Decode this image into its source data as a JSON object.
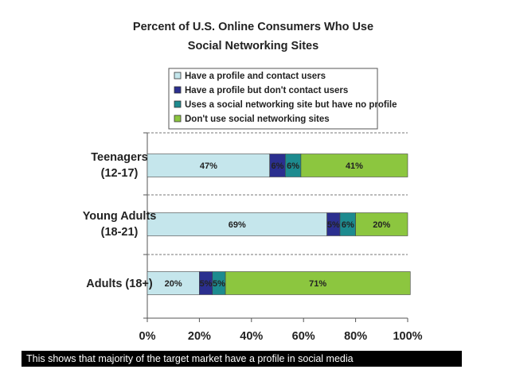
{
  "chart_data": {
    "type": "bar",
    "orientation": "horizontal",
    "stacked": true,
    "title_lines": [
      "Percent of U.S. Online Consumers Who Use",
      "Social Networking Sites"
    ],
    "categories": [
      {
        "line1": "Teenagers",
        "line2": "(12-17)"
      },
      {
        "line1": "Young Adults",
        "line2": "(18-21)"
      },
      {
        "line1": "Adults (18+)",
        "line2": ""
      }
    ],
    "series": [
      {
        "name": "Have a profile and contact users",
        "color": "#c5e6ec",
        "values": [
          47,
          69,
          20
        ]
      },
      {
        "name": "Have a profile but don't contact users",
        "color": "#2b2f8f",
        "values": [
          6,
          5,
          5
        ]
      },
      {
        "name": "Uses a social networking site but have no profile",
        "color": "#1d8b8f",
        "values": [
          6,
          6,
          5
        ]
      },
      {
        "name": "Don't use social networking sites",
        "color": "#8cc63f",
        "values": [
          41,
          20,
          71
        ]
      }
    ],
    "xlim": [
      0,
      100
    ],
    "xticks": [
      "0%",
      "20%",
      "40%",
      "60%",
      "80%",
      "100%"
    ],
    "legend_position": "top-center",
    "grid": "horizontal separators"
  },
  "caption": "This shows  that majority of the target market have a profile in social media"
}
